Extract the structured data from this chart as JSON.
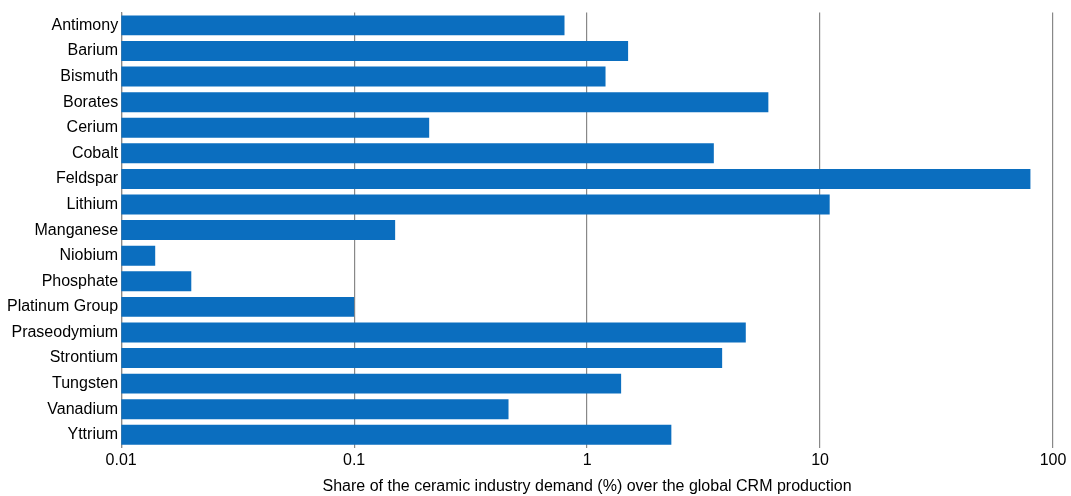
{
  "chart_data": {
    "type": "bar",
    "orientation": "horizontal",
    "log": "x",
    "categories": [
      "Antimony",
      "Barium",
      "Bismuth",
      "Borates",
      "Cerium",
      "Cobalt",
      "Feldspar",
      "Lithium",
      "Manganese",
      "Niobium",
      "Phosphate",
      "Platinum Group",
      "Praseodymium",
      "Strontium",
      "Tungsten",
      "Vanadium",
      "Yttrium"
    ],
    "values": [
      0.8,
      1.5,
      1.2,
      6.0,
      0.21,
      3.5,
      80,
      11,
      0.15,
      0.014,
      0.02,
      0.1,
      4.8,
      3.8,
      1.4,
      0.46,
      2.3
    ],
    "color": "#0b6ebf",
    "xlabel": "Share of the ceramic industry demand (%) over the global CRM production",
    "xlim": [
      0.01,
      100
    ],
    "xticks": [
      0.01,
      0.1,
      1,
      10,
      100
    ],
    "grid": "x"
  }
}
